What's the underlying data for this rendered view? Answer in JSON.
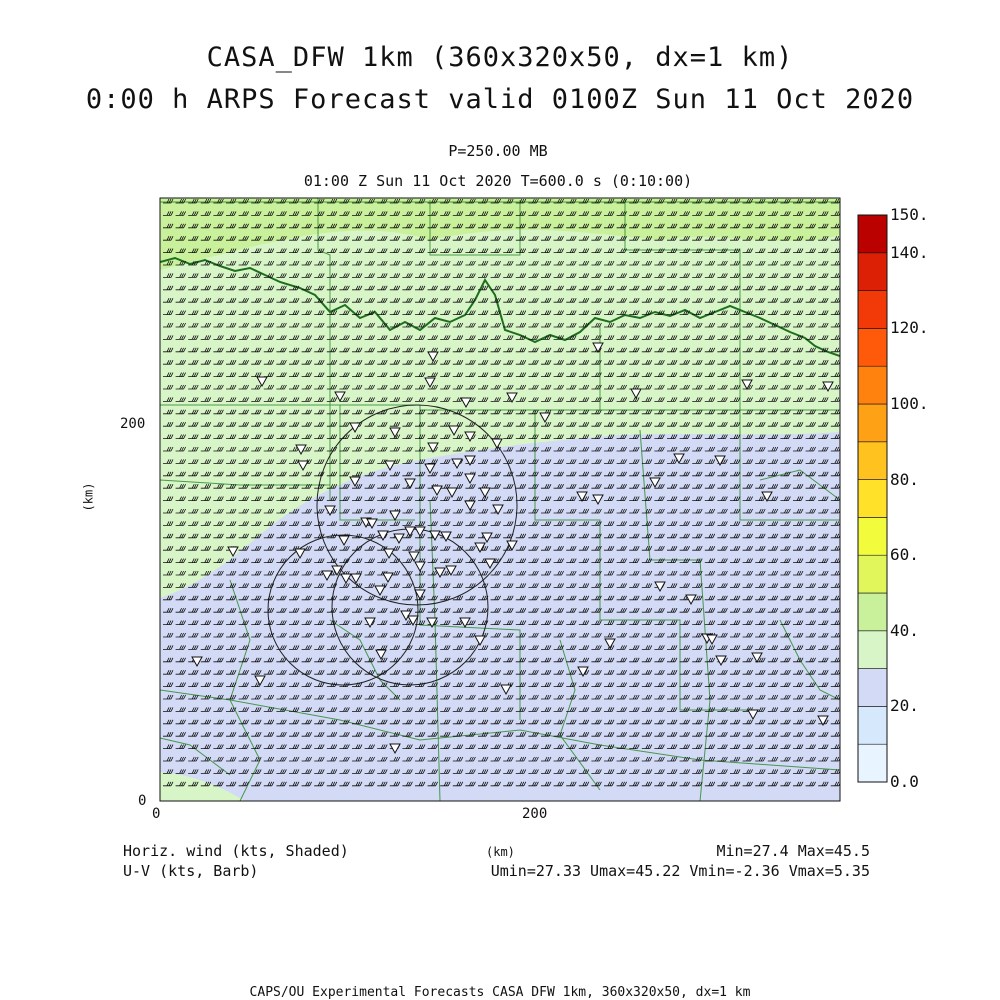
{
  "title": {
    "line1": "CASA_DFW 1km (360x320x50, dx=1 km)",
    "line2": "0:00 h ARPS Forecast valid 0100Z Sun 11 Oct 2020"
  },
  "subtitle": {
    "level": "P=250.00 MB",
    "time": "01:00 Z Sun 11 Oct 2020    T=600.0 s (0:10:00)"
  },
  "axes": {
    "x_ticks": [
      "0",
      "200"
    ],
    "y_ticks": [
      "0",
      "200"
    ],
    "x_label": "(km)",
    "y_label": "(km)",
    "x_range_km": [
      0,
      360
    ],
    "y_range_km": [
      0,
      320
    ]
  },
  "colorbar": {
    "labels": [
      "0.0",
      "20.",
      "40.",
      "60.",
      "80.",
      "100.",
      "120.",
      "140.",
      "150."
    ],
    "bins": [
      {
        "lo": 0,
        "hi": 10,
        "color": "#e8f4ff"
      },
      {
        "lo": 10,
        "hi": 20,
        "color": "#d6e8fb"
      },
      {
        "lo": 20,
        "hi": 30,
        "color": "#d2daf6"
      },
      {
        "lo": 30,
        "hi": 40,
        "color": "#d8f5c8"
      },
      {
        "lo": 40,
        "hi": 50,
        "color": "#c9f09a"
      },
      {
        "lo": 50,
        "hi": 60,
        "color": "#e0f65a"
      },
      {
        "lo": 60,
        "hi": 70,
        "color": "#f2fc3c"
      },
      {
        "lo": 70,
        "hi": 80,
        "color": "#ffe12a"
      },
      {
        "lo": 80,
        "hi": 90,
        "color": "#ffc21e"
      },
      {
        "lo": 90,
        "hi": 100,
        "color": "#ffa114"
      },
      {
        "lo": 100,
        "hi": 110,
        "color": "#ff820e"
      },
      {
        "lo": 110,
        "hi": 120,
        "color": "#ff5a0a"
      },
      {
        "lo": 120,
        "hi": 130,
        "color": "#f23a08"
      },
      {
        "lo": 130,
        "hi": 140,
        "color": "#dc2006"
      },
      {
        "lo": 140,
        "hi": 150,
        "color": "#bb0000"
      }
    ]
  },
  "fields": {
    "shaded": "Horiz. wind (kts, Shaded)",
    "barb": "U-V (kts, Barb)",
    "minmax": "Min=27.4 Max=45.5",
    "uv_stats": "Umin=27.33 Umax=45.22 Vmin=-2.36 Vmax=5.35"
  },
  "footer": "CAPS/OU Experimental Forecasts  CASA DFW 1km, 360x320x50, dx=1 km",
  "colors": {
    "wind_30_40": "#d8f5c8",
    "wind_40_50": "#c9f09a",
    "wind_20_30": "#d2daf6",
    "county_lines": "#2e8b2e",
    "barb": "#111111"
  }
}
